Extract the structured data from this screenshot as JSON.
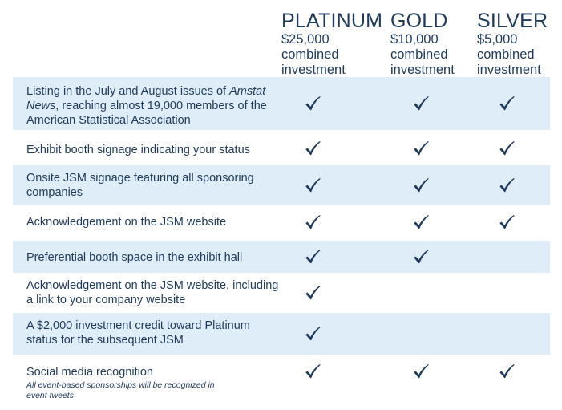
{
  "tiers": [
    {
      "name": "PLATINUM",
      "lines": [
        "$25,000",
        "combined",
        "investment"
      ]
    },
    {
      "name": "GOLD",
      "lines": [
        "$10,000",
        "combined",
        "investment"
      ]
    },
    {
      "name": "SILVER",
      "lines": [
        "$5,000",
        "combined",
        "investment"
      ]
    }
  ],
  "rows": [
    {
      "benefit_pre": "Listing in the July and August issues of ",
      "benefit_em": "Amstat News",
      "benefit_post": ", reaching almost 19,000 members of the American Statistical Association",
      "platinum": true,
      "gold": true,
      "silver": true
    },
    {
      "benefit": "Exhibit booth signage indicating your status",
      "platinum": true,
      "gold": true,
      "silver": true
    },
    {
      "benefit": "Onsite JSM signage featuring all sponsoring companies",
      "platinum": true,
      "gold": true,
      "silver": true
    },
    {
      "benefit": "Acknowledgement on the JSM website",
      "platinum": true,
      "gold": true,
      "silver": true
    },
    {
      "benefit": "Preferential booth space in the exhibit hall",
      "platinum": true,
      "gold": true,
      "silver": false
    },
    {
      "benefit": "Acknowledgement on the JSM website, including a link to your company website",
      "platinum": true,
      "gold": false,
      "silver": false
    },
    {
      "benefit": "A $2,000 investment credit toward Platinum status for the subsequent JSM",
      "platinum": true,
      "gold": false,
      "silver": false
    },
    {
      "benefit": "Social media recognition",
      "note": "All event-based sponsorships will be recognized in event tweets",
      "platinum": true,
      "gold": true,
      "silver": true
    }
  ],
  "colors": {
    "text": "#1e3a5c",
    "row_shade": "#deedf7"
  },
  "icons": {
    "included": "checkmark-icon"
  }
}
